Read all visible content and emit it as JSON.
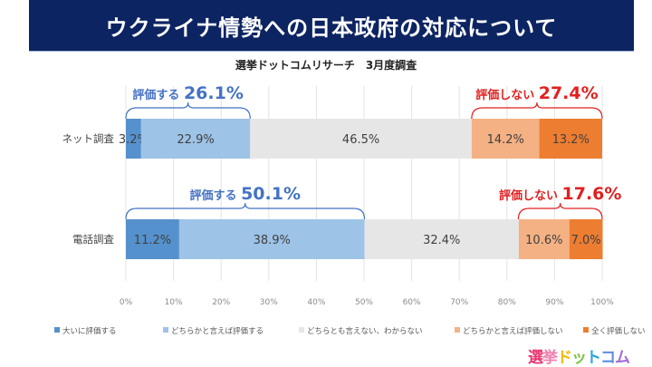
{
  "header": {
    "title": "ウクライナ情勢への日本政府の対応について",
    "title_bar_color": "#0d2462"
  },
  "subtitle": "選挙ドットコムリサーチ　3月度調査",
  "chart_data": {
    "type": "bar",
    "orientation": "horizontal-stacked-100",
    "title": "ウクライナ情勢への日本政府の対応について",
    "subtitle": "選挙ドットコムリサーチ　3月度調査",
    "categories": [
      "ネット調査",
      "電話調査"
    ],
    "series": [
      {
        "name": "大いに評価する",
        "color": "#5591cc",
        "values": [
          3.2,
          11.2
        ]
      },
      {
        "name": "どちらかと言えば評価する",
        "color": "#9dc3e6",
        "values": [
          22.9,
          38.9
        ]
      },
      {
        "name": "どちらとも言えない、わからない",
        "color": "#e7e6e6",
        "values": [
          46.5,
          32.4
        ]
      },
      {
        "name": "どちらかと言えば評価しない",
        "color": "#f4b183",
        "values": [
          14.2,
          10.6
        ]
      },
      {
        "name": "全く評価しない",
        "color": "#ed7d31",
        "values": [
          13.2,
          7.0
        ]
      }
    ],
    "data_labels": [
      [
        "3.2%",
        "22.9%",
        "46.5%",
        "14.2%",
        "13.2%"
      ],
      [
        "11.2%",
        "38.9%",
        "32.4%",
        "10.6%",
        "7.0%"
      ]
    ],
    "xlim": [
      0,
      100
    ],
    "x_ticks": [
      "0%",
      "10%",
      "20%",
      "30%",
      "40%",
      "50%",
      "60%",
      "70%",
      "80%",
      "90%",
      "100%"
    ],
    "grid": true,
    "legend_position": "bottom",
    "annotations": [
      {
        "row": 0,
        "group": "positive",
        "label": "評価する",
        "value": "26.1%",
        "color": "#4472c4"
      },
      {
        "row": 0,
        "group": "negative",
        "label": "評価しない",
        "value": "27.4%",
        "color": "#e02020"
      },
      {
        "row": 1,
        "group": "positive",
        "label": "評価する",
        "value": "50.1%",
        "color": "#4472c4"
      },
      {
        "row": 1,
        "group": "negative",
        "label": "評価しない",
        "value": "17.6%",
        "color": "#e02020"
      }
    ]
  },
  "logo": {
    "chars": [
      "選",
      "挙",
      "ド",
      "ッ",
      "ト",
      "コ",
      "ム"
    ],
    "colors": [
      "#e8336e",
      "#f07fae",
      "#f5b800",
      "#7dc242",
      "#2aa5e0",
      "#5b8ee0",
      "#a26fd6"
    ]
  }
}
